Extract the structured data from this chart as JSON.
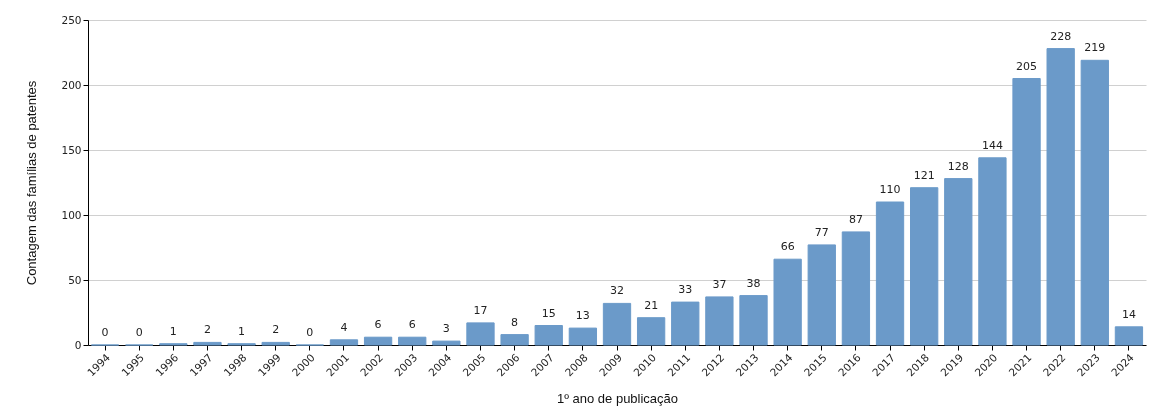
{
  "chart_data": {
    "type": "bar",
    "xlabel": "1º ano de publicação",
    "ylabel": "Contagem das famílias de patentes",
    "categories": [
      "1994",
      "1995",
      "1996",
      "1997",
      "1998",
      "1999",
      "2000",
      "2001",
      "2002",
      "2003",
      "2004",
      "2005",
      "2006",
      "2007",
      "2008",
      "2009",
      "2010",
      "2011",
      "2012",
      "2013",
      "2014",
      "2015",
      "2016",
      "2017",
      "2018",
      "2019",
      "2020",
      "2021",
      "2022",
      "2023",
      "2024"
    ],
    "values": [
      0,
      0,
      1,
      2,
      1,
      2,
      0,
      4,
      6,
      6,
      3,
      17,
      8,
      15,
      13,
      32,
      21,
      33,
      37,
      38,
      66,
      77,
      87,
      110,
      121,
      128,
      144,
      205,
      228,
      219,
      14
    ],
    "color": "#6b9ac9",
    "ylim": [
      0,
      250
    ],
    "yticks": [
      0,
      50,
      100,
      150,
      200,
      250
    ],
    "grid": "y",
    "data_labels": true
  }
}
